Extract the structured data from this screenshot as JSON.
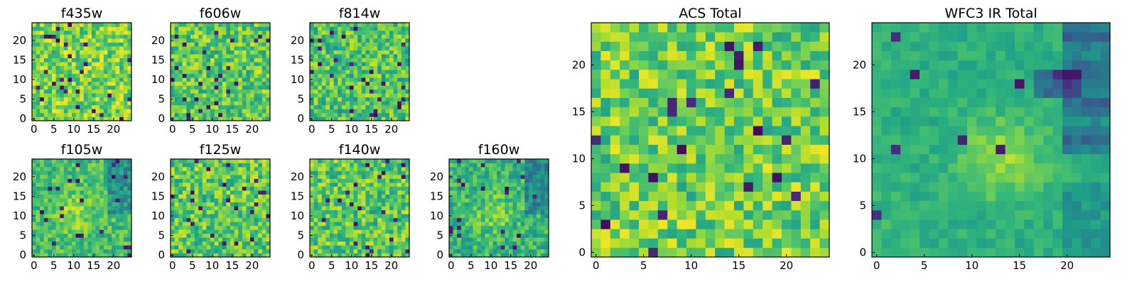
{
  "chart_data": [
    {
      "type": "heatmap",
      "title": "f435w",
      "grid_size": 25,
      "xticks": [
        "0",
        "5",
        "10",
        "15",
        "20"
      ],
      "yticks": [
        "0",
        "5",
        "10",
        "15",
        "20"
      ],
      "xlim": [
        0,
        25
      ],
      "ylim": [
        0,
        25
      ],
      "colormap": "viridis",
      "value_range": [
        0,
        1
      ],
      "seed": 11,
      "texture": "noisy",
      "mean_level": 0.8
    },
    {
      "type": "heatmap",
      "title": "f606w",
      "grid_size": 25,
      "xticks": [
        "0",
        "5",
        "10",
        "15",
        "20"
      ],
      "yticks": [
        "0",
        "5",
        "10",
        "15",
        "20"
      ],
      "xlim": [
        0,
        25
      ],
      "ylim": [
        0,
        25
      ],
      "colormap": "viridis",
      "value_range": [
        0,
        1
      ],
      "seed": 23,
      "texture": "noisy",
      "mean_level": 0.74
    },
    {
      "type": "heatmap",
      "title": "f814w",
      "grid_size": 25,
      "xticks": [
        "0",
        "5",
        "10",
        "15",
        "20"
      ],
      "yticks": [
        "0",
        "5",
        "10",
        "15",
        "20"
      ],
      "xlim": [
        0,
        25
      ],
      "ylim": [
        0,
        25
      ],
      "colormap": "viridis",
      "value_range": [
        0,
        1
      ],
      "seed": 37,
      "texture": "noisy",
      "mean_level": 0.72
    },
    {
      "type": "heatmap",
      "title": "f105w",
      "grid_size": 25,
      "xticks": [
        "0",
        "5",
        "10",
        "15",
        "20"
      ],
      "yticks": [
        "0",
        "5",
        "10",
        "15",
        "20"
      ],
      "xlim": [
        0,
        25
      ],
      "ylim": [
        0,
        25
      ],
      "colormap": "viridis",
      "value_range": [
        0,
        1
      ],
      "seed": 41,
      "texture": "blob",
      "mean_level": 0.74
    },
    {
      "type": "heatmap",
      "title": "f125w",
      "grid_size": 25,
      "xticks": [
        "0",
        "5",
        "10",
        "15",
        "20"
      ],
      "yticks": [
        "0",
        "5",
        "10",
        "15",
        "20"
      ],
      "xlim": [
        0,
        25
      ],
      "ylim": [
        0,
        25
      ],
      "colormap": "viridis",
      "value_range": [
        0,
        1
      ],
      "seed": 53,
      "texture": "noisy",
      "mean_level": 0.74
    },
    {
      "type": "heatmap",
      "title": "f140w",
      "grid_size": 25,
      "xticks": [
        "0",
        "5",
        "10",
        "15",
        "20"
      ],
      "yticks": [
        "0",
        "5",
        "10",
        "15",
        "20"
      ],
      "xlim": [
        0,
        25
      ],
      "ylim": [
        0,
        25
      ],
      "colormap": "viridis",
      "value_range": [
        0,
        1
      ],
      "seed": 67,
      "texture": "noisy",
      "mean_level": 0.74
    },
    {
      "type": "heatmap",
      "title": "f160w",
      "grid_size": 25,
      "xticks": [
        "0",
        "5",
        "10",
        "15",
        "20"
      ],
      "yticks": [
        "0",
        "5",
        "10",
        "15",
        "20"
      ],
      "xlim": [
        0,
        25
      ],
      "ylim": [
        0,
        25
      ],
      "colormap": "viridis",
      "value_range": [
        0,
        1
      ],
      "seed": 79,
      "texture": "blob",
      "mean_level": 0.7
    },
    {
      "type": "heatmap",
      "title": "ACS Total",
      "grid_size": 25,
      "xticks": [
        "0",
        "5",
        "10",
        "15",
        "20"
      ],
      "yticks": [
        "0",
        "5",
        "10",
        "15",
        "20"
      ],
      "xlim": [
        0,
        25
      ],
      "ylim": [
        0,
        25
      ],
      "colormap": "viridis",
      "value_range": [
        0,
        1
      ],
      "seed": 97,
      "texture": "noisy",
      "mean_level": 0.78
    },
    {
      "type": "heatmap",
      "title": "WFC3 IR Total",
      "grid_size": 25,
      "xticks": [
        "0",
        "5",
        "10",
        "15",
        "20"
      ],
      "yticks": [
        "0",
        "5",
        "10",
        "15",
        "20"
      ],
      "xlim": [
        0,
        25
      ],
      "ylim": [
        0,
        25
      ],
      "colormap": "viridis",
      "value_range": [
        0,
        1
      ],
      "seed": 113,
      "texture": "smooth",
      "mean_level": 0.66
    }
  ]
}
